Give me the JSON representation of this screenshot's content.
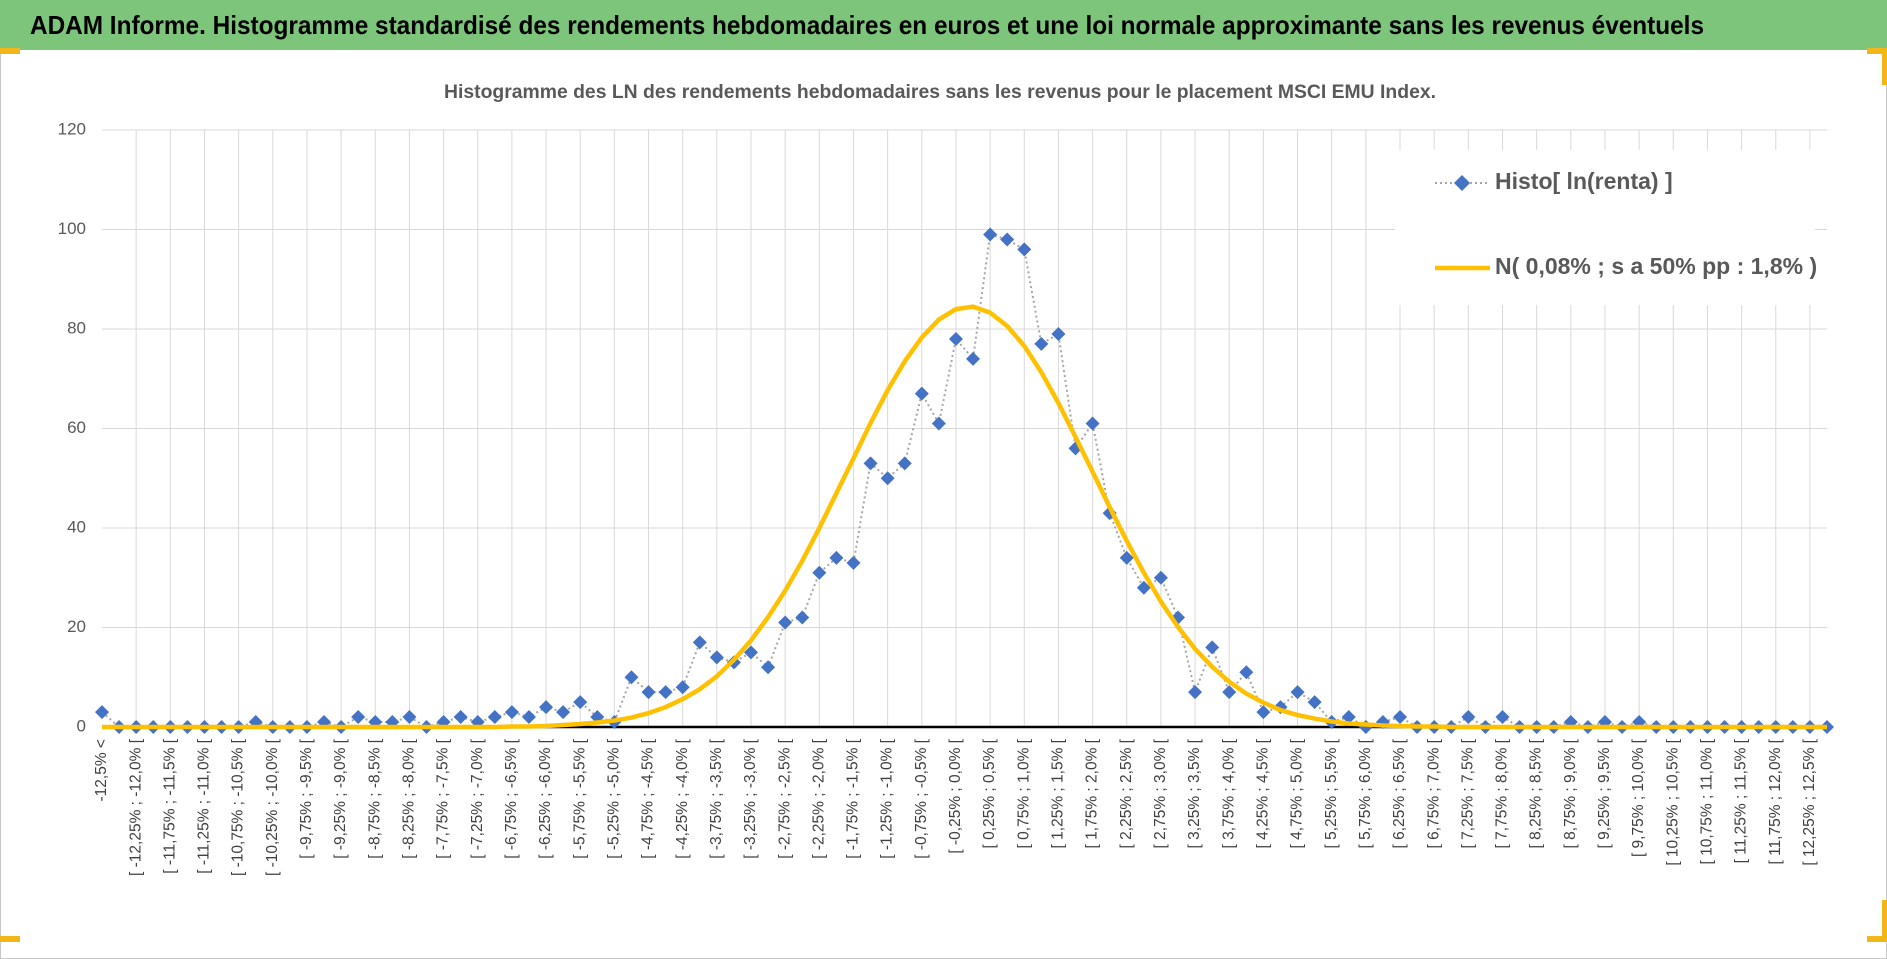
{
  "header": {
    "title": "ADAM Informe. Histogramme standardisé des rendements hebdomadaires en euros et une loi normale approximante sans les revenus éventuels"
  },
  "chart_data": {
    "type": "line",
    "title": "Histogramme des LN des rendements hebdomadaires sans les revenus pour le placement MSCI EMU Index.",
    "categories": [
      "-12,5% <",
      null,
      "[ -12,25% ; -12,0% [",
      null,
      "[ -11,75% ; -11,5% [",
      null,
      "[ -11,25% ; -11,0% [",
      null,
      "[ -10,75% ; -10,5% [",
      null,
      "[ -10,25% ; -10,0% [",
      null,
      "[ -9,75% ; -9,5% [",
      null,
      "[ -9,25% ; -9,0% [",
      null,
      "[ -8,75% ; -8,5% [",
      null,
      "[ -8,25% ; -8,0% [",
      null,
      "[ -7,75% ; -7,5% [",
      null,
      "[ -7,25% ; -7,0% [",
      null,
      "[ -6,75% ; -6,5% [",
      null,
      "[ -6,25% ; -6,0% [",
      null,
      "[ -5,75% ; -5,5% [",
      null,
      "[ -5,25% ; -5,0% [",
      null,
      "[ -4,75% ; -4,5% [",
      null,
      "[ -4,25% ; -4,0% [",
      null,
      "[ -3,75% ; -3,5% [",
      null,
      "[ -3,25% ; -3,0% [",
      null,
      "[ -2,75% ; -2,5% [",
      null,
      "[ -2,25% ; -2,0% [",
      null,
      "[ -1,75% ; -1,5% [",
      null,
      "[ -1,25% ; -1,0% [",
      null,
      "[ -0,75% ; -0,5% [",
      null,
      "[ -0,25% ; 0,0% [",
      null,
      "[ 0,25% ; 0,5% [",
      null,
      "[ 0,75% ; 1,0% [",
      null,
      "[ 1,25% ; 1,5% [",
      null,
      "[ 1,75% ; 2,0% [",
      null,
      "[ 2,25% ; 2,5% [",
      null,
      "[ 2,75% ; 3,0% [",
      null,
      "[ 3,25% ; 3,5% [",
      null,
      "[ 3,75% ; 4,0% [",
      null,
      "[ 4,25% ; 4,5% [",
      null,
      "[ 4,75% ; 5,0% [",
      null,
      "[ 5,25% ; 5,5% [",
      null,
      "[ 5,75% ; 6,0% [",
      null,
      "[ 6,25% ; 6,5% [",
      null,
      "[ 6,75% ; 7,0% [",
      null,
      "[ 7,25% ; 7,5% [",
      null,
      "[ 7,75% ; 8,0% [",
      null,
      "[ 8,25% ; 8,5% [",
      null,
      "[ 8,75% ; 9,0% [",
      null,
      "[ 9,25% ; 9,5% [",
      null,
      "[ 9,75% ; 10,0% [",
      null,
      "[ 10,25% ; 10,5% [",
      null,
      "[ 10,75% ; 11,0% [",
      null,
      "[ 11,25% ; 11,5% [",
      null,
      "[ 11,75% ; 12,0% [",
      null,
      "[ 12,25% ; 12,5% [",
      null
    ],
    "series": [
      {
        "name": "Histo[ ln(renta) ]",
        "color": "#4472c4",
        "line_color": "#a6a6a6",
        "marker": "diamond",
        "line_style": "dotted",
        "values": [
          3,
          0,
          0,
          0,
          0,
          0,
          0,
          0,
          0,
          1,
          0,
          0,
          0,
          1,
          0,
          2,
          1,
          1,
          2,
          0,
          1,
          2,
          1,
          2,
          3,
          2,
          4,
          3,
          5,
          2,
          1,
          10,
          7,
          7,
          8,
          17,
          14,
          13,
          15,
          12,
          21,
          22,
          31,
          34,
          33,
          53,
          50,
          53,
          67,
          61,
          78,
          74,
          99,
          98,
          96,
          77,
          79,
          56,
          61,
          43,
          34,
          28,
          30,
          22,
          7,
          16,
          7,
          11,
          3,
          4,
          7,
          5,
          1,
          2,
          0,
          1,
          2,
          0,
          0,
          0,
          2,
          0,
          2,
          0,
          0,
          0,
          1,
          0,
          1,
          0,
          1,
          0,
          0,
          0,
          0,
          0,
          0,
          0,
          0,
          0,
          0,
          0
        ]
      },
      {
        "name": "N( 0,08% ; s a 50% pp : 1,8% )",
        "color": "#ffc000",
        "marker": "none",
        "line_style": "solid",
        "values": [
          0,
          0,
          0,
          0,
          0,
          0,
          0,
          0,
          0,
          0,
          0,
          0,
          0,
          0,
          0,
          0,
          0,
          0,
          0,
          0,
          0,
          0,
          0,
          0,
          0.1,
          0.1,
          0.2,
          0.4,
          0.6,
          0.9,
          1.3,
          1.9,
          2.8,
          4.0,
          5.6,
          7.6,
          10.2,
          13.5,
          17.4,
          22.1,
          27.4,
          33.4,
          40.0,
          47.0,
          54.0,
          61.1,
          67.7,
          73.5,
          78.3,
          81.9,
          84.0,
          84.5,
          83.3,
          80.6,
          76.6,
          71.3,
          65.1,
          58.3,
          51.3,
          44.2,
          37.4,
          31.0,
          25.2,
          20.1,
          15.7,
          12.1,
          9.1,
          6.7,
          4.9,
          3.4,
          2.4,
          1.7,
          1.1,
          0.7,
          0.5,
          0.3,
          0.2,
          0.1,
          0.1,
          0,
          0,
          0,
          0,
          0,
          0,
          0,
          0,
          0,
          0,
          0,
          0,
          0,
          0,
          0,
          0,
          0,
          0,
          0,
          0,
          0,
          0,
          0
        ]
      }
    ],
    "ylim": [
      0,
      120
    ],
    "yticks": [
      0,
      20,
      40,
      60,
      80,
      100,
      120
    ],
    "grid": true,
    "legend": "upper right"
  }
}
